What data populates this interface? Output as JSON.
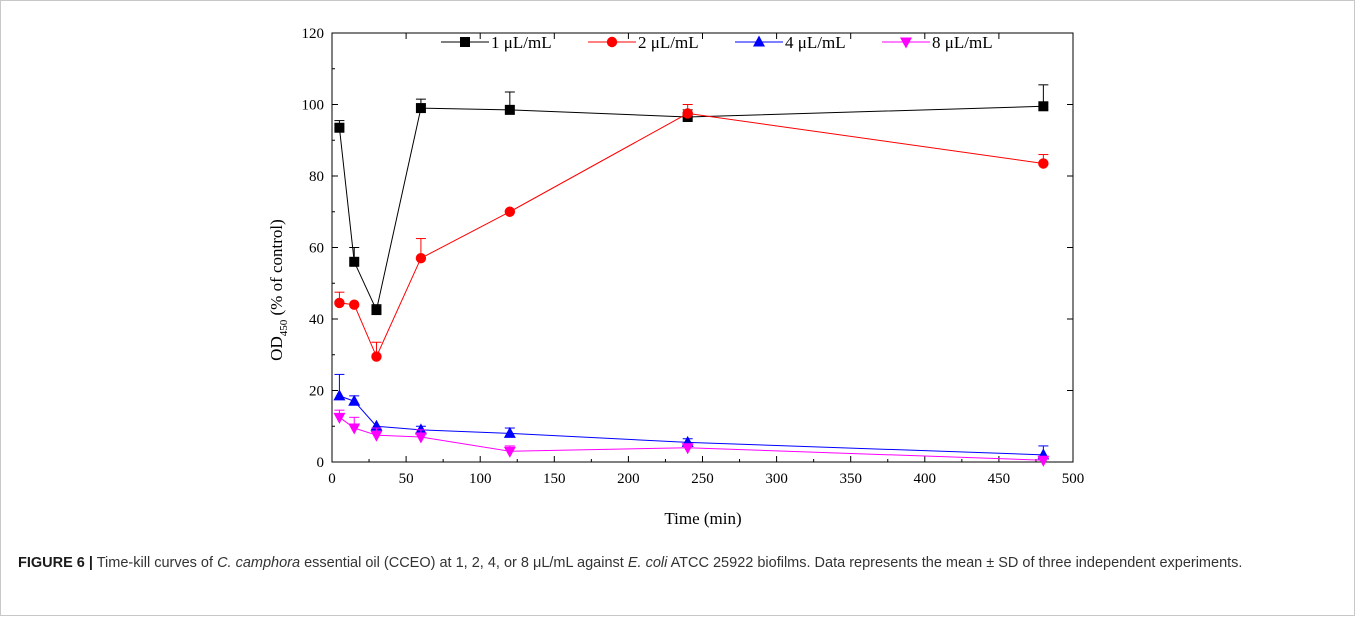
{
  "chart_data": {
    "type": "line",
    "xlabel": "Time (min)",
    "ylabel_main": "OD",
    "ylabel_sub": "450",
    "ylabel_rest": " (% of control)",
    "xlim": [
      0,
      500
    ],
    "ylim": [
      0,
      120
    ],
    "xticks": [
      0,
      50,
      100,
      150,
      200,
      250,
      300,
      350,
      400,
      450,
      500
    ],
    "yticks": [
      0,
      20,
      40,
      60,
      80,
      100,
      120
    ],
    "legend_position": "top",
    "grid": false,
    "series": [
      {
        "name": "1 μL/mL",
        "color": "#000000",
        "marker": "square",
        "x": [
          5,
          15,
          30,
          60,
          120,
          240,
          480
        ],
        "y": [
          93.5,
          56,
          42.5,
          99,
          98.5,
          96.5,
          99.5
        ],
        "err": [
          2,
          4,
          1.5,
          2.5,
          5,
          2,
          6
        ]
      },
      {
        "name": "2 μL/mL",
        "color": "#ff0000",
        "marker": "circle",
        "x": [
          5,
          15,
          30,
          60,
          120,
          240,
          480
        ],
        "y": [
          44.5,
          44,
          29.5,
          57,
          70,
          97.5,
          83.5
        ],
        "err": [
          3,
          0,
          4,
          5.5,
          0,
          2.5,
          2.5
        ]
      },
      {
        "name": "4 μL/mL",
        "color": "#0000ff",
        "marker": "triangle-up",
        "x": [
          5,
          15,
          30,
          60,
          120,
          240,
          480
        ],
        "y": [
          18.5,
          17,
          10,
          9,
          8,
          5.5,
          2
        ],
        "err": [
          6,
          1.5,
          0,
          1,
          1.5,
          1,
          2.5
        ]
      },
      {
        "name": "8 μL/mL",
        "color": "#ff00ff",
        "marker": "triangle-down",
        "x": [
          5,
          15,
          30,
          60,
          120,
          240,
          480
        ],
        "y": [
          12.5,
          9.5,
          7.5,
          7,
          3,
          4,
          0.5
        ],
        "err": [
          2,
          3,
          2,
          2,
          1.5,
          1,
          0.5
        ]
      }
    ]
  },
  "caption": {
    "label": "FIGURE 6 |",
    "t1": " Time-kill curves of ",
    "i1": "C. camphora",
    "t2": " essential oil (CCEO) at 1, 2, 4, or 8 μL/mL against ",
    "i2": "E. coli",
    "t3": " ATCC 25922 biofilms. Data represents the mean ± SD of three independent experiments."
  }
}
